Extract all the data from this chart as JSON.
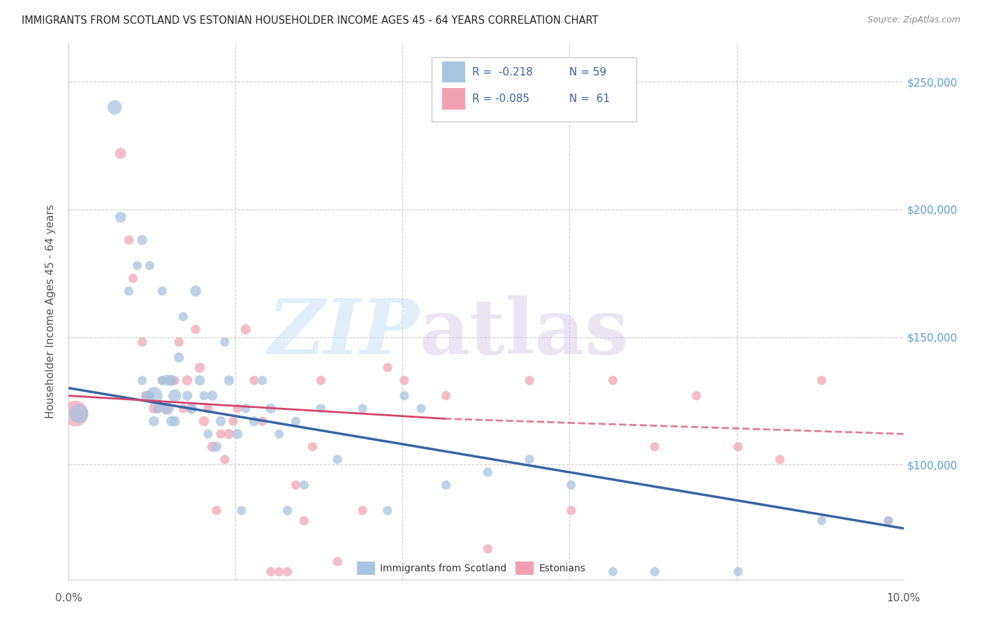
{
  "title": "IMMIGRANTS FROM SCOTLAND VS ESTONIAN HOUSEHOLDER INCOME AGES 45 - 64 YEARS CORRELATION CHART",
  "source": "Source: ZipAtlas.com",
  "ylabel": "Householder Income Ages 45 - 64 years",
  "xlim": [
    0.0,
    10.0
  ],
  "ylim": [
    55000,
    265000
  ],
  "yticks": [
    100000,
    150000,
    200000,
    250000
  ],
  "ytick_labels": [
    "$100,000",
    "$150,000",
    "$200,000",
    "$250,000"
  ],
  "color_scotland": "#a8c4e0",
  "color_estonian": "#f0a0b0",
  "color_line_scotland": "#3465a4",
  "color_line_estonian": "#d4446a",
  "color_right_axis": "#5b9bd5",
  "scotland_line": [
    0.0,
    130000,
    10.0,
    75000
  ],
  "estonian_line_solid": [
    0.0,
    127000,
    4.5,
    118000
  ],
  "estonian_line_dash": [
    4.5,
    118000,
    10.0,
    112000
  ],
  "scotland_x": [
    0.12,
    0.55,
    0.62,
    0.72,
    0.82,
    0.88,
    0.88,
    0.93,
    0.97,
    0.97,
    1.02,
    1.02,
    1.07,
    1.12,
    1.12,
    1.18,
    1.18,
    1.23,
    1.23,
    1.27,
    1.27,
    1.32,
    1.37,
    1.42,
    1.47,
    1.52,
    1.57,
    1.62,
    1.67,
    1.72,
    1.77,
    1.82,
    1.87,
    1.92,
    2.02,
    2.07,
    2.12,
    2.22,
    2.32,
    2.42,
    2.52,
    2.62,
    2.72,
    2.82,
    3.02,
    3.22,
    3.52,
    3.82,
    4.02,
    4.22,
    4.52,
    5.02,
    5.52,
    6.02,
    6.52,
    7.02,
    8.02,
    9.02,
    9.82
  ],
  "scotland_y": [
    120000,
    240000,
    197000,
    168000,
    178000,
    188000,
    133000,
    127000,
    127000,
    178000,
    127000,
    117000,
    122000,
    133000,
    168000,
    122000,
    133000,
    133000,
    117000,
    117000,
    127000,
    142000,
    158000,
    127000,
    122000,
    168000,
    133000,
    127000,
    112000,
    127000,
    107000,
    117000,
    148000,
    133000,
    112000,
    82000,
    122000,
    117000,
    133000,
    122000,
    112000,
    82000,
    117000,
    92000,
    122000,
    102000,
    122000,
    82000,
    127000,
    122000,
    92000,
    97000,
    102000,
    92000,
    58000,
    58000,
    58000,
    78000,
    78000
  ],
  "scotland_size": [
    380,
    220,
    130,
    90,
    90,
    110,
    90,
    90,
    90,
    90,
    320,
    110,
    110,
    90,
    90,
    180,
    130,
    130,
    110,
    110,
    180,
    110,
    90,
    110,
    130,
    130,
    110,
    90,
    90,
    110,
    110,
    110,
    90,
    110,
    110,
    90,
    90,
    110,
    90,
    110,
    90,
    90,
    90,
    90,
    90,
    90,
    90,
    90,
    90,
    90,
    90,
    90,
    90,
    90,
    90,
    90,
    90,
    90,
    90
  ],
  "estonian_x": [
    0.08,
    0.62,
    0.72,
    0.77,
    0.88,
    0.92,
    0.97,
    1.02,
    1.07,
    1.12,
    1.17,
    1.22,
    1.27,
    1.32,
    1.37,
    1.42,
    1.47,
    1.52,
    1.57,
    1.62,
    1.67,
    1.72,
    1.77,
    1.82,
    1.87,
    1.92,
    1.97,
    2.02,
    2.12,
    2.22,
    2.32,
    2.42,
    2.52,
    2.62,
    2.72,
    2.82,
    2.92,
    3.02,
    3.22,
    3.52,
    3.82,
    4.02,
    4.52,
    5.02,
    5.52,
    6.02,
    6.52,
    7.02,
    7.52,
    8.02,
    8.52,
    9.02,
    9.82
  ],
  "estonian_y": [
    120000,
    222000,
    188000,
    173000,
    148000,
    127000,
    127000,
    122000,
    122000,
    133000,
    122000,
    133000,
    133000,
    148000,
    122000,
    133000,
    122000,
    153000,
    138000,
    117000,
    122000,
    107000,
    82000,
    112000,
    102000,
    112000,
    117000,
    122000,
    153000,
    133000,
    117000,
    58000,
    58000,
    58000,
    92000,
    78000,
    107000,
    133000,
    62000,
    82000,
    138000,
    133000,
    127000,
    67000,
    133000,
    82000,
    133000,
    107000,
    127000,
    107000,
    102000,
    133000,
    78000
  ],
  "estonian_size": [
    700,
    130,
    90,
    90,
    90,
    90,
    90,
    110,
    90,
    90,
    110,
    90,
    90,
    90,
    90,
    110,
    90,
    90,
    110,
    110,
    90,
    110,
    90,
    90,
    90,
    110,
    90,
    90,
    110,
    90,
    90,
    90,
    90,
    90,
    90,
    90,
    90,
    90,
    90,
    90,
    90,
    90,
    90,
    90,
    90,
    90,
    90,
    90,
    90,
    90,
    90,
    90,
    90
  ]
}
